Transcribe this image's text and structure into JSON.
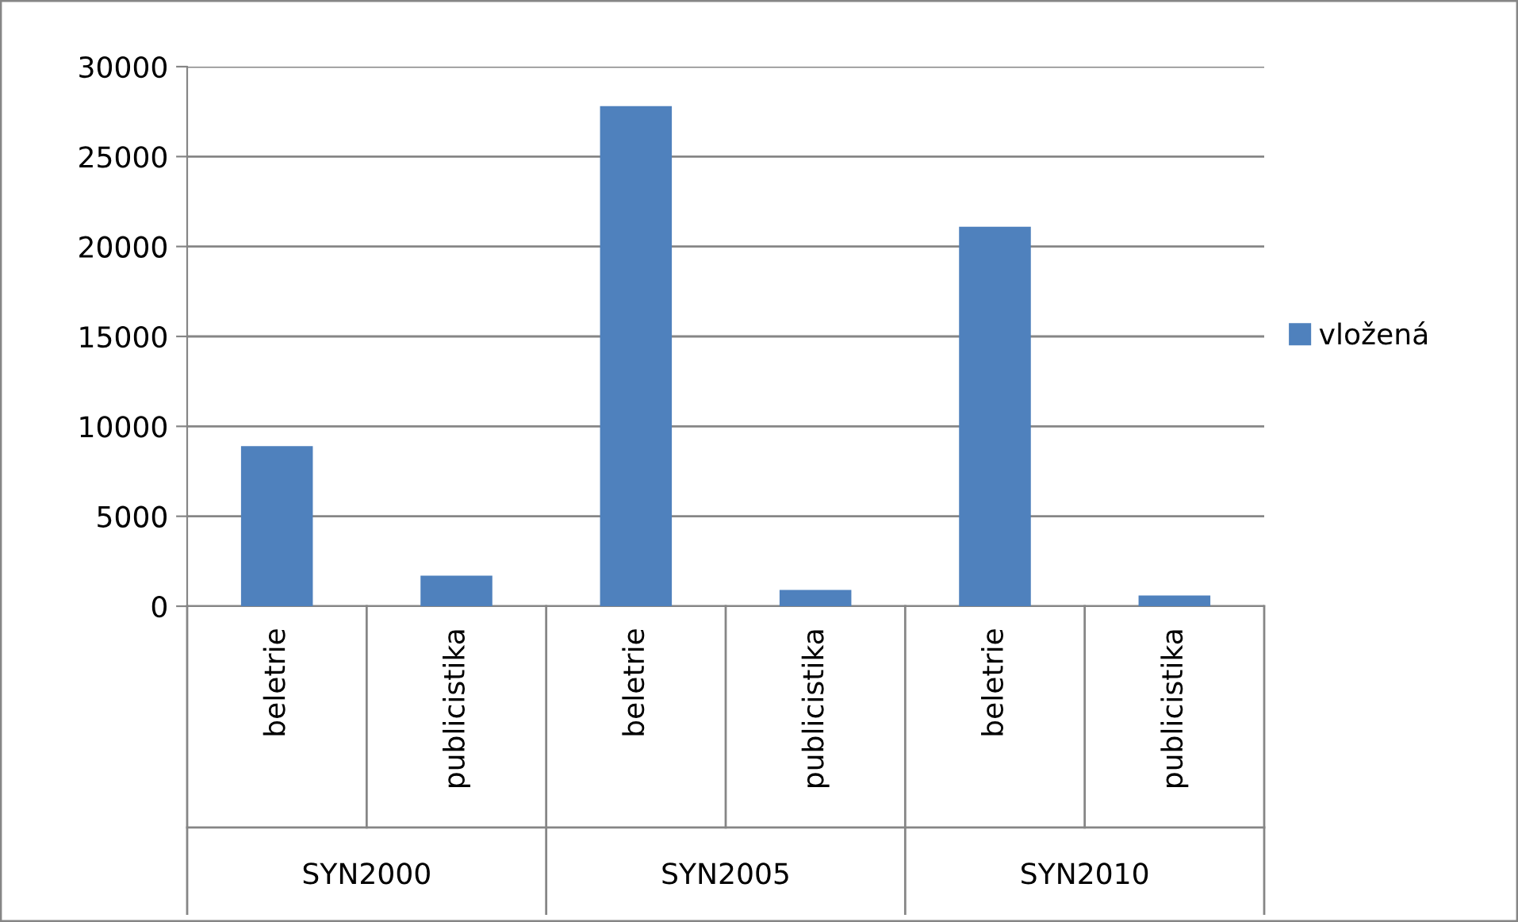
{
  "chart_data": {
    "type": "bar",
    "categories": [
      "beletrie",
      "publicistika",
      "beletrie",
      "publicistika",
      "beletrie",
      "publicistika"
    ],
    "series": [
      {
        "name": "vložená",
        "color": "#4f81bd",
        "values": [
          8900,
          1700,
          27800,
          900,
          21100,
          600
        ]
      }
    ],
    "ylim": [
      0,
      30000
    ],
    "yticks": [
      0,
      5000,
      10000,
      15000,
      20000,
      25000,
      30000
    ],
    "grid": "y",
    "legend": "right",
    "annotations": [
      "SYN2000",
      "SYN2005",
      "SYN2010"
    ]
  }
}
